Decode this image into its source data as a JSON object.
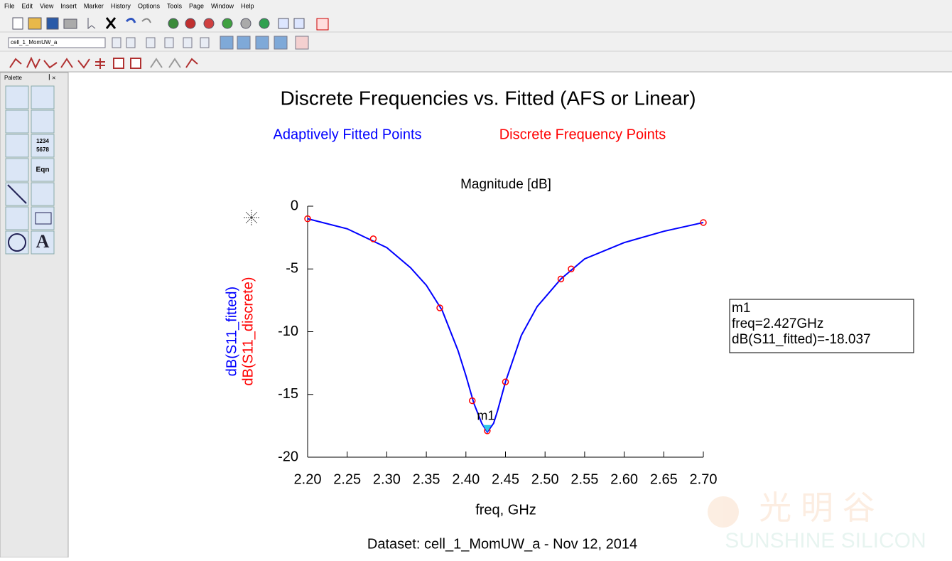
{
  "menu": [
    "File",
    "Edit",
    "View",
    "Insert",
    "Marker",
    "History",
    "Options",
    "Tools",
    "Page",
    "Window",
    "Help"
  ],
  "toolbar_combo": "cell_1_MomUW_a",
  "palette": {
    "title": "Palette",
    "labels": [
      "1234",
      "5678",
      "Eqn",
      "A"
    ]
  },
  "watermark": {
    "chinese": "光 明 谷",
    "english": "SUNSHINE SILICON"
  },
  "chart_data": {
    "type": "line",
    "title": "Discrete Frequencies vs. Fitted (AFS or Linear)",
    "subtitle": "Magnitude [dB]",
    "xlabel": "freq, GHz",
    "ylabels": [
      "dB(S11_fitted)",
      "dB(S11_discrete)"
    ],
    "footer": "Dataset: cell_1_MomUW_a - Nov 12, 2014",
    "series": [
      {
        "name": "Adaptively Fitted Points",
        "color": "#0000ff",
        "style": "line",
        "x": [
          2.2,
          2.25,
          2.3,
          2.33,
          2.35,
          2.37,
          2.39,
          2.4,
          2.41,
          2.42,
          2.427,
          2.435,
          2.44,
          2.45,
          2.47,
          2.49,
          2.52,
          2.55,
          2.6,
          2.65,
          2.7
        ],
        "values": [
          -1.0,
          -1.8,
          -3.3,
          -4.9,
          -6.3,
          -8.3,
          -11.5,
          -13.5,
          -15.7,
          -17.3,
          -18.0,
          -17.3,
          -16.3,
          -14.0,
          -10.3,
          -8.0,
          -5.8,
          -4.2,
          -2.9,
          -2.0,
          -1.3
        ]
      },
      {
        "name": "Discrete Frequency Points",
        "color": "#ff0000",
        "style": "markers",
        "x": [
          2.2,
          2.283,
          2.367,
          2.408,
          2.427,
          2.45,
          2.52,
          2.533,
          2.7
        ],
        "values": [
          -1.0,
          -2.6,
          -8.1,
          -15.5,
          -17.9,
          -14.0,
          -5.8,
          -5.0,
          -1.3
        ]
      }
    ],
    "xlim": [
      2.2,
      2.7
    ],
    "xticks": [
      {
        "value": 2.2,
        "label": "2.20"
      },
      {
        "value": 2.25,
        "label": "2.25"
      },
      {
        "value": 2.3,
        "label": "2.30"
      },
      {
        "value": 2.35,
        "label": "2.35"
      },
      {
        "value": 2.4,
        "label": "2.40"
      },
      {
        "value": 2.45,
        "label": "2.45"
      },
      {
        "value": 2.5,
        "label": "2.50"
      },
      {
        "value": 2.55,
        "label": "2.55"
      },
      {
        "value": 2.6,
        "label": "2.60"
      },
      {
        "value": 2.65,
        "label": "2.65"
      },
      {
        "value": 2.7,
        "label": "2.70"
      }
    ],
    "ylim": [
      -20,
      0
    ],
    "yticks": [
      0,
      -5,
      -10,
      -15,
      -20
    ],
    "marker": {
      "name": "m1",
      "lines": [
        "m1",
        "freq=2.427GHz",
        "dB(S11_fitted)=-18.037"
      ]
    }
  }
}
